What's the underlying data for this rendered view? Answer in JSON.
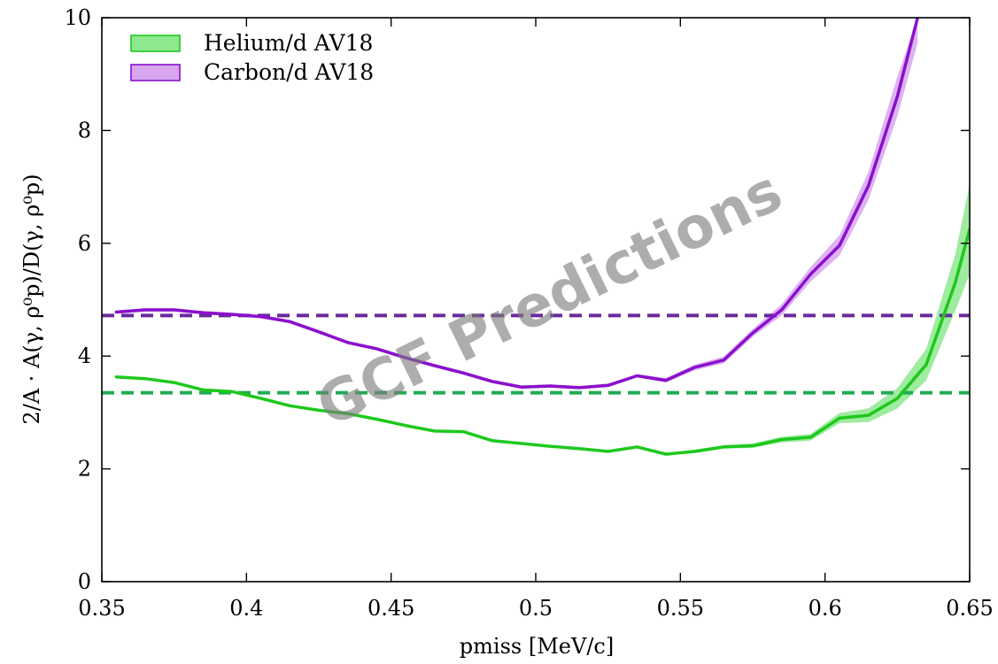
{
  "chart_data": {
    "type": "line",
    "xlabel": "pmiss [MeV/c]",
    "ylabel": "2/A · A(γ, ρ⁰p)/D(γ, ρ⁰p)",
    "xlim": [
      0.35,
      0.65
    ],
    "ylim": [
      0,
      10
    ],
    "xticks": [
      0.35,
      0.4,
      0.45,
      0.5,
      0.55,
      0.6,
      0.65
    ],
    "xtick_labels": [
      "0.35",
      "0.4",
      "0.45",
      "0.5",
      "0.55",
      "0.6",
      "0.65"
    ],
    "yticks": [
      0,
      2,
      4,
      6,
      8,
      10
    ],
    "ytick_labels": [
      "0",
      "2",
      "4",
      "6",
      "8",
      "10"
    ],
    "grid": false,
    "legend_position": "top-left",
    "watermark": "GCF Predictions",
    "series": [
      {
        "name": "Helium/d AV18",
        "color": "#1ec81e",
        "band_color": "#8ee88e",
        "x": [
          0.355,
          0.365,
          0.375,
          0.385,
          0.395,
          0.405,
          0.415,
          0.425,
          0.435,
          0.445,
          0.455,
          0.465,
          0.475,
          0.485,
          0.495,
          0.505,
          0.515,
          0.525,
          0.535,
          0.545,
          0.555,
          0.565,
          0.575,
          0.585,
          0.595,
          0.605,
          0.615,
          0.625,
          0.635,
          0.645,
          0.65
        ],
        "y": [
          3.63,
          3.6,
          3.53,
          3.4,
          3.37,
          3.25,
          3.12,
          3.04,
          2.98,
          2.88,
          2.77,
          2.67,
          2.66,
          2.5,
          2.45,
          2.4,
          2.36,
          2.31,
          2.39,
          2.26,
          2.31,
          2.39,
          2.41,
          2.52,
          2.56,
          2.9,
          2.95,
          3.25,
          3.85,
          5.3,
          6.25
        ],
        "band_half_width": [
          0.02,
          0.02,
          0.02,
          0.02,
          0.02,
          0.02,
          0.02,
          0.02,
          0.02,
          0.02,
          0.02,
          0.02,
          0.02,
          0.02,
          0.02,
          0.02,
          0.02,
          0.02,
          0.02,
          0.02,
          0.03,
          0.03,
          0.04,
          0.05,
          0.06,
          0.09,
          0.12,
          0.18,
          0.28,
          0.5,
          0.8
        ],
        "reference_line": 3.35
      },
      {
        "name": "Carbon/d AV18",
        "color": "#8a10cc",
        "band_color": "#d7a6ee",
        "x": [
          0.355,
          0.365,
          0.375,
          0.385,
          0.395,
          0.405,
          0.415,
          0.425,
          0.435,
          0.445,
          0.455,
          0.465,
          0.475,
          0.485,
          0.495,
          0.505,
          0.515,
          0.525,
          0.535,
          0.545,
          0.555,
          0.565,
          0.575,
          0.585,
          0.595,
          0.605,
          0.615,
          0.625,
          0.632
        ],
        "y": [
          4.78,
          4.82,
          4.82,
          4.77,
          4.74,
          4.7,
          4.61,
          4.43,
          4.24,
          4.13,
          3.97,
          3.83,
          3.7,
          3.55,
          3.45,
          3.47,
          3.44,
          3.48,
          3.65,
          3.57,
          3.8,
          3.93,
          4.41,
          4.82,
          5.45,
          5.96,
          7.02,
          8.6,
          10.0
        ],
        "band_half_width": [
          0.03,
          0.03,
          0.03,
          0.03,
          0.03,
          0.03,
          0.03,
          0.03,
          0.03,
          0.03,
          0.03,
          0.03,
          0.03,
          0.03,
          0.03,
          0.03,
          0.03,
          0.03,
          0.03,
          0.04,
          0.05,
          0.06,
          0.07,
          0.1,
          0.13,
          0.18,
          0.25,
          0.35,
          0.45
        ],
        "reference_line": 4.72
      }
    ],
    "reference_line_colors": [
      "#22aa55",
      "#6a2a9a"
    ]
  }
}
